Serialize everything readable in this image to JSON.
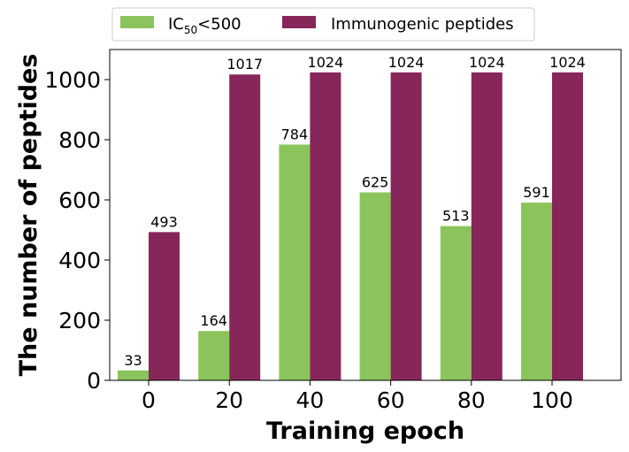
{
  "chart_data": {
    "type": "bar",
    "categories": [
      "0",
      "20",
      "40",
      "60",
      "80",
      "100"
    ],
    "series": [
      {
        "name": "IC50<500",
        "legend_main": "IC",
        "legend_sub": "50",
        "legend_rest": "<500",
        "color": "#8bc45c",
        "values": [
          33,
          164,
          784,
          625,
          513,
          591
        ]
      },
      {
        "name": "Immunogenic peptides",
        "color": "#872658",
        "values": [
          493,
          1017,
          1024,
          1024,
          1024,
          1024
        ]
      }
    ],
    "xlabel": "Training epoch",
    "ylabel": "The number of peptides",
    "ylim": [
      0,
      1100
    ],
    "yticks": [
      0,
      200,
      400,
      600,
      800,
      1000
    ],
    "grid": false,
    "legend_position": "top-center"
  }
}
